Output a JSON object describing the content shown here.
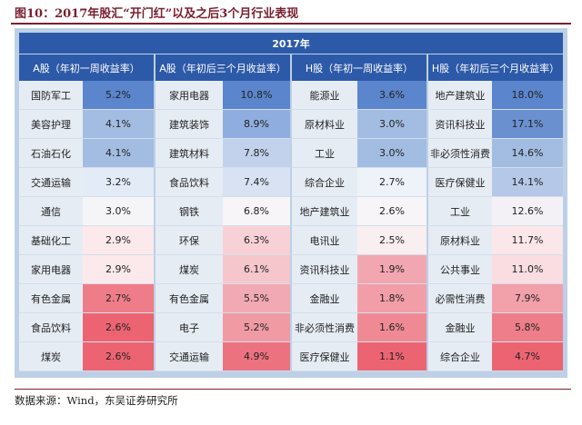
{
  "figure": {
    "title": "图10：2017年股汇“开门红”以及之后3个月行业表现",
    "source": "数据来源：Wind，东吴证券研究所"
  },
  "table": {
    "year_header": "2017年",
    "group_headers": [
      "A股（年初一周收益率）",
      "A股（年初后三个月收益率）",
      "H股（年初一周收益率）",
      "H股（年初后三个月收益率）"
    ],
    "rows": [
      [
        {
          "name": "国防军工",
          "value": "5.2%",
          "color": "#5b85cc"
        },
        {
          "name": "家用电器",
          "value": "10.8%",
          "color": "#5b85cc"
        },
        {
          "name": "能源业",
          "value": "3.6%",
          "color": "#5b85cc"
        },
        {
          "name": "地产建筑业",
          "value": "18.0%",
          "color": "#5b85cc"
        }
      ],
      [
        {
          "name": "美容护理",
          "value": "4.1%",
          "color": "#a3bce2"
        },
        {
          "name": "建筑装饰",
          "value": "8.9%",
          "color": "#8fadde"
        },
        {
          "name": "原材料业",
          "value": "3.0%",
          "color": "#a3bce2"
        },
        {
          "name": "资讯科技业",
          "value": "17.1%",
          "color": "#6a90d0"
        }
      ],
      [
        {
          "name": "石油石化",
          "value": "4.1%",
          "color": "#a3bce2"
        },
        {
          "name": "建筑材料",
          "value": "7.8%",
          "color": "#c2d2ec"
        },
        {
          "name": "工业",
          "value": "3.0%",
          "color": "#a3bce2"
        },
        {
          "name": "非必须性消费",
          "value": "14.6%",
          "color": "#a3bce2"
        }
      ],
      [
        {
          "name": "交通运输",
          "value": "3.2%",
          "color": "#e3ebf6"
        },
        {
          "name": "食品饮料",
          "value": "7.4%",
          "color": "#d8e2f2"
        },
        {
          "name": "综合企业",
          "value": "2.7%",
          "color": "#eef2f9"
        },
        {
          "name": "医疗保健业",
          "value": "14.1%",
          "color": "#b5c8e8"
        }
      ],
      [
        {
          "name": "通信",
          "value": "3.0%",
          "color": "#f5f5f8"
        },
        {
          "name": "钢铁",
          "value": "6.8%",
          "color": "#f7f5f8"
        },
        {
          "name": "地产建筑业",
          "value": "2.6%",
          "color": "#f7f5f8"
        },
        {
          "name": "工业",
          "value": "12.6%",
          "color": "#f3f1f5"
        }
      ],
      [
        {
          "name": "基础化工",
          "value": "2.9%",
          "color": "#fbe9ec"
        },
        {
          "name": "环保",
          "value": "6.3%",
          "color": "#f7d1d6"
        },
        {
          "name": "电讯业",
          "value": "2.5%",
          "color": "#f9eef0"
        },
        {
          "name": "原材料业",
          "value": "11.7%",
          "color": "#fbe6e9"
        }
      ],
      [
        {
          "name": "家用电器",
          "value": "2.9%",
          "color": "#fbe9ec"
        },
        {
          "name": "煤炭",
          "value": "6.1%",
          "color": "#f5c6cc"
        },
        {
          "name": "资讯科技业",
          "value": "1.9%",
          "color": "#f2a7b0"
        },
        {
          "name": "公共事业",
          "value": "11.0%",
          "color": "#f9dde1"
        }
      ],
      [
        {
          "name": "有色金属",
          "value": "2.7%",
          "color": "#ef7d89"
        },
        {
          "name": "有色金属",
          "value": "5.5%",
          "color": "#f1aab3"
        },
        {
          "name": "金融业",
          "value": "1.8%",
          "color": "#f29ea8"
        },
        {
          "name": "必需性消费",
          "value": "7.9%",
          "color": "#f2a0aa"
        }
      ],
      [
        {
          "name": "食品饮料",
          "value": "2.6%",
          "color": "#ec6472"
        },
        {
          "name": "电子",
          "value": "5.2%",
          "color": "#f09aa4"
        },
        {
          "name": "非必须性消费",
          "value": "1.6%",
          "color": "#ef8a95"
        },
        {
          "name": "金融业",
          "value": "5.8%",
          "color": "#ee7e8a"
        }
      ],
      [
        {
          "name": "煤炭",
          "value": "2.6%",
          "color": "#ec6472"
        },
        {
          "name": "交通运输",
          "value": "4.9%",
          "color": "#ec7280"
        },
        {
          "name": "医疗保健业",
          "value": "1.1%",
          "color": "#ec6472"
        },
        {
          "name": "综合企业",
          "value": "4.7%",
          "color": "#ec6472"
        }
      ]
    ]
  }
}
